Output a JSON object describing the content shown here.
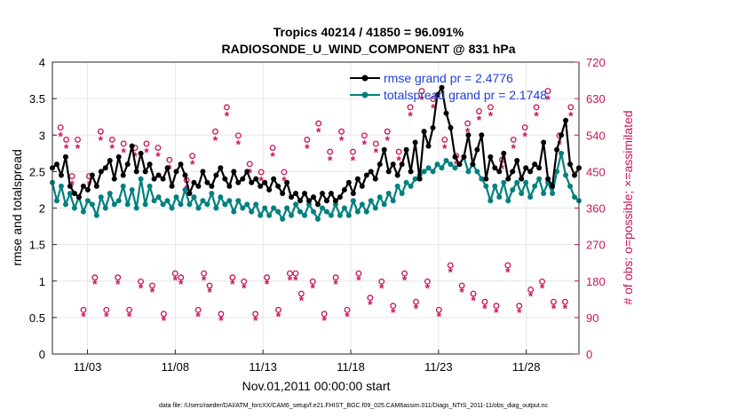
{
  "chart_data": {
    "type": "line",
    "title": "Tropics 40214 / 41850 = 96.091%",
    "subtitle": "RADIOSONDE_U_WIND_COMPONENT @ 831 hPa",
    "xlabel": "Nov.01,2011 00:00:00 start",
    "ylabel_left": "rmse and totalspread",
    "ylabel_right": "# of obs: o=possible; ×=assimilated",
    "footer": "data file: /Users/raeder/DAI/ATM_forcXX/CAM6_setup/f.e21.FHIST_BGC.f09_025.CAM6assim.011/Diags_NTrS_2011-11/obs_diag_output.nc",
    "xlim": [
      1.0,
      31.0
    ],
    "ylim_left": [
      0,
      4
    ],
    "ylim_right": [
      0,
      720
    ],
    "x_ticks": [
      3,
      8,
      13,
      18,
      23,
      28
    ],
    "x_tick_labels": [
      "11/03",
      "11/08",
      "11/13",
      "11/18",
      "11/23",
      "11/28"
    ],
    "y_left_ticks": [
      "0",
      "0.5",
      "1",
      "1.5",
      "2",
      "2.5",
      "3",
      "3.5",
      "4"
    ],
    "y_right_ticks": [
      "0",
      "90",
      "180",
      "270",
      "360",
      "450",
      "540",
      "630",
      "720"
    ],
    "colors": {
      "rmse": "#000000",
      "spread": "#00807f",
      "obs": "#c8145a",
      "legend_text": "#1f3fd8"
    },
    "series": [
      {
        "name": "rmse",
        "legend": "rmse grand pr = 2.4776",
        "values": [
          2.55,
          2.6,
          2.45,
          2.7,
          2.3,
          2.2,
          2.15,
          2.3,
          2.25,
          2.45,
          2.3,
          2.5,
          2.55,
          2.65,
          2.4,
          2.7,
          2.45,
          2.6,
          2.85,
          2.5,
          2.75,
          2.5,
          2.6,
          2.4,
          2.45,
          2.4,
          2.55,
          2.3,
          2.5,
          2.6,
          2.45,
          2.2,
          2.35,
          2.3,
          2.5,
          2.35,
          2.3,
          2.45,
          2.55,
          2.4,
          2.3,
          2.5,
          2.35,
          2.4,
          2.5,
          2.35,
          2.4,
          2.3,
          2.35,
          2.25,
          2.4,
          2.3,
          2.2,
          2.35,
          2.15,
          2.2,
          2.1,
          2.2,
          2.1,
          2.15,
          2.05,
          2.2,
          2.1,
          2.2,
          2.1,
          2.15,
          2.25,
          2.35,
          2.2,
          2.4,
          2.3,
          2.45,
          2.5,
          2.4,
          2.6,
          2.8,
          2.5,
          2.6,
          2.45,
          2.6,
          2.8,
          2.5,
          2.9,
          2.4,
          3.05,
          2.85,
          3.1,
          3.55,
          3.65,
          3.3,
          3.1,
          2.7,
          2.6,
          2.7,
          3.0,
          2.6,
          2.8,
          3.0,
          2.4,
          2.7,
          2.55,
          2.5,
          2.75,
          2.4,
          2.5,
          2.65,
          2.4,
          2.55,
          2.5,
          2.6,
          2.55,
          2.9,
          2.4,
          2.3,
          2.8,
          3.0,
          3.2,
          2.6,
          2.45,
          2.55
        ]
      },
      {
        "name": "totalspread",
        "legend": "totalspread grand pr = 2.1748",
        "values": [
          2.35,
          2.1,
          2.3,
          2.05,
          2.2,
          2.0,
          2.15,
          1.95,
          2.1,
          2.05,
          1.9,
          2.15,
          2.0,
          2.2,
          2.05,
          2.1,
          2.3,
          2.05,
          2.25,
          2.0,
          2.4,
          2.05,
          2.3,
          2.1,
          2.15,
          2.05,
          2.1,
          2.0,
          2.15,
          2.05,
          2.25,
          2.05,
          2.15,
          2.0,
          2.1,
          2.05,
          2.2,
          2.0,
          2.15,
          2.05,
          2.1,
          1.95,
          2.1,
          2.0,
          2.05,
          1.95,
          2.05,
          1.9,
          2.0,
          1.9,
          2.0,
          1.95,
          1.85,
          2.0,
          1.9,
          2.05,
          1.95,
          1.9,
          2.05,
          1.95,
          1.85,
          2.0,
          1.95,
          1.9,
          2.05,
          1.9,
          2.0,
          1.9,
          2.1,
          1.95,
          2.05,
          1.95,
          2.1,
          2.0,
          2.15,
          2.05,
          2.2,
          2.1,
          2.3,
          2.2,
          2.35,
          2.3,
          2.4,
          2.45,
          2.5,
          2.55,
          2.5,
          2.6,
          2.55,
          2.65,
          2.6,
          2.55,
          2.6,
          2.7,
          2.5,
          2.6,
          2.5,
          2.4,
          2.3,
          2.1,
          2.3,
          2.15,
          2.35,
          2.1,
          2.25,
          2.35,
          2.2,
          2.35,
          2.15,
          2.3,
          2.4,
          2.2,
          2.35,
          2.2,
          2.5,
          2.75,
          2.45,
          2.3,
          2.15,
          2.1
        ]
      },
      {
        "name": "obs_possible",
        "marker": "o",
        "values": [
          550,
          520,
          430,
          520,
          100,
          430,
          180,
          540,
          100,
          520,
          180,
          510,
          100,
          500,
          170,
          510,
          160,
          500,
          90,
          470,
          190,
          180,
          420,
          480,
          100,
          190,
          160,
          540,
          90,
          600,
          180,
          530,
          170,
          460,
          90,
          440,
          180,
          500,
          100,
          440,
          190,
          190,
          140,
          520,
          170,
          560,
          90,
          490,
          180,
          540,
          100,
          490,
          190,
          530,
          130,
          510,
          170,
          540,
          110,
          490,
          190,
          600,
          120,
          640,
          170,
          620,
          100,
          520,
          210,
          480,
          160,
          560,
          140,
          590,
          120,
          600,
          110,
          470,
          210,
          520,
          110,
          550,
          150,
          600,
          170,
          640,
          120,
          530,
          120,
          600
        ]
      },
      {
        "name": "obs_assimilated",
        "marker": "*",
        "values": [
          540,
          510,
          420,
          510,
          95,
          420,
          175,
          530,
          95,
          510,
          175,
          500,
          95,
          490,
          165,
          500,
          155,
          490,
          85,
          460,
          185,
          175,
          410,
          470,
          95,
          185,
          155,
          530,
          85,
          590,
          175,
          520,
          165,
          450,
          85,
          430,
          175,
          490,
          95,
          430,
          185,
          185,
          135,
          510,
          165,
          550,
          85,
          480,
          175,
          530,
          95,
          480,
          185,
          520,
          125,
          500,
          165,
          530,
          105,
          480,
          185,
          590,
          115,
          630,
          165,
          610,
          95,
          510,
          205,
          470,
          155,
          550,
          135,
          580,
          115,
          590,
          105,
          460,
          205,
          510,
          105,
          540,
          145,
          590,
          165,
          630,
          115,
          520,
          115,
          590
        ]
      }
    ]
  }
}
